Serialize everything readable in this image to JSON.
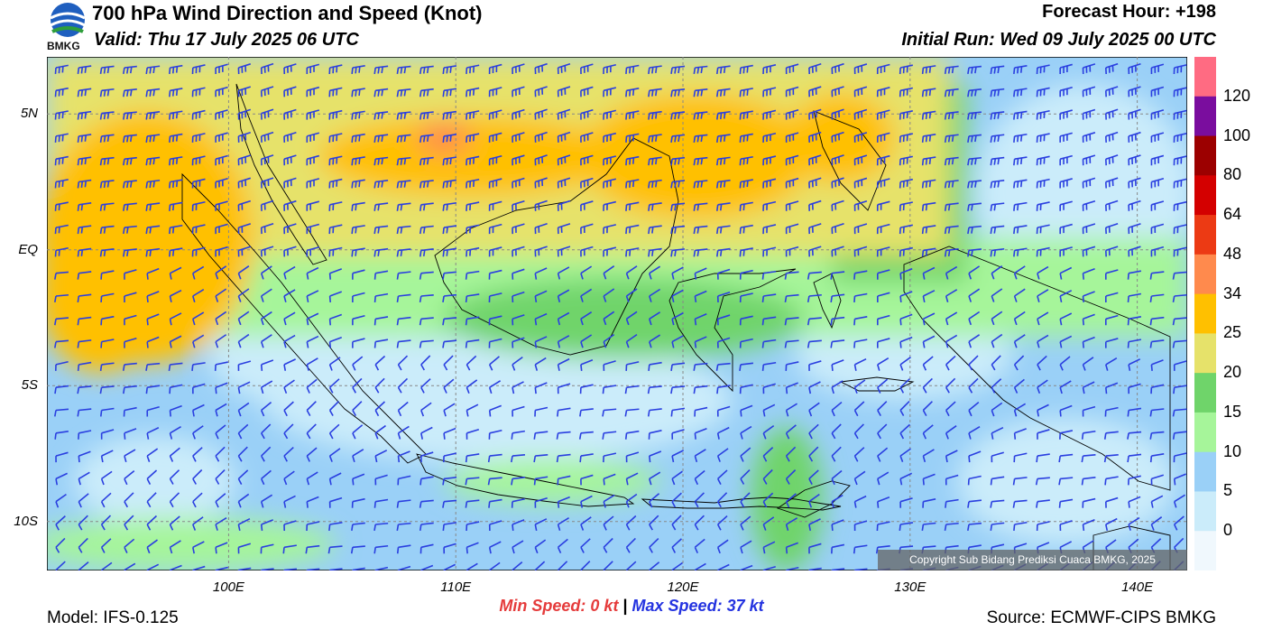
{
  "header": {
    "title": "700 hPa Wind Direction and Speed (Knot)",
    "valid": "Valid: Thu 17 July 2025 06 UTC",
    "forecast_hour": "Forecast Hour: +198",
    "initial_run": "Initial Run: Wed 09 July 2025 00 UTC",
    "logo_text": "BMKG"
  },
  "axes": {
    "lat_labels": [
      {
        "text": "5N",
        "lat": 5
      },
      {
        "text": "EQ",
        "lat": 0
      },
      {
        "text": "5S",
        "lat": -5
      },
      {
        "text": "10S",
        "lat": -10
      }
    ],
    "lon_labels": [
      {
        "text": "100E",
        "lon": 100
      },
      {
        "text": "110E",
        "lon": 110
      },
      {
        "text": "120E",
        "lon": 120
      },
      {
        "text": "130E",
        "lon": 130
      },
      {
        "text": "140E",
        "lon": 140
      }
    ],
    "lon_range": [
      92,
      142.2
    ],
    "lat_range": [
      -11.8,
      7.1
    ]
  },
  "colorbar": {
    "labels": [
      "120",
      "100",
      "80",
      "64",
      "48",
      "34",
      "25",
      "20",
      "15",
      "10",
      "5",
      "0"
    ],
    "colors": [
      "#ff6b82",
      "#7a0d9e",
      "#9c0000",
      "#d40000",
      "#ec3a14",
      "#ff8a4d",
      "#ffc000",
      "#e6e26a",
      "#6fd46a",
      "#a6f59a",
      "#9ad0f7",
      "#cbecfa",
      "#f0f8fd"
    ]
  },
  "speed": {
    "min_label": "Min Speed:",
    "min_value": "0 kt",
    "separator": "|",
    "max_label": "Max Speed:",
    "max_value": "37 kt"
  },
  "footer": {
    "model": "Model: IFS-0.125",
    "source": "Source: ECMWF-CIPS BMKG",
    "copyright": "Copyright Sub Bidang Prediksi Cuaca BMKG, 2025"
  },
  "style": {
    "barb_color": "#2a3fe0",
    "coast_color": "#000000"
  }
}
